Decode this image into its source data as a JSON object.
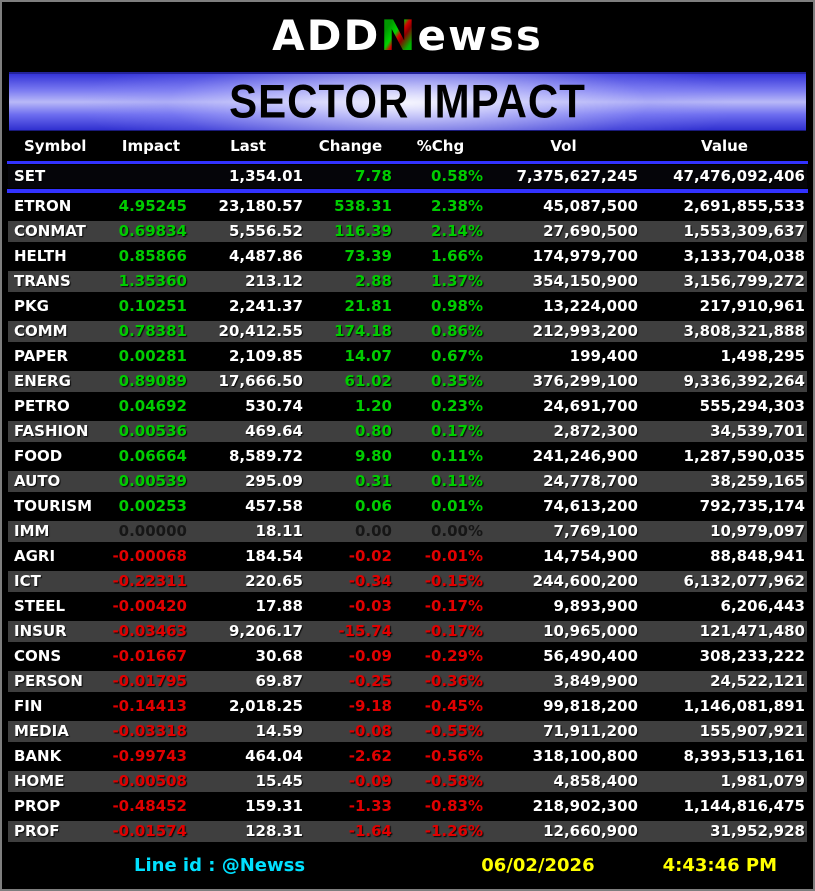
{
  "logo": {
    "part1": "ADD",
    "part2": "N",
    "part3": "ewss"
  },
  "title": "SECTOR IMPACT",
  "columns": [
    "Symbol",
    "Impact",
    "Last",
    "Change",
    "%Chg",
    "Vol",
    "Value"
  ],
  "set_row": {
    "symbol": "SET",
    "impact": "",
    "last": "1,354.01",
    "change": "7.78",
    "pchg": "0.58%",
    "vol": "7,375,627,245",
    "value": "47,476,092,406",
    "dir": "up"
  },
  "rows": [
    {
      "symbol": "ETRON",
      "impact": "4.95245",
      "last": "23,180.57",
      "change": "538.31",
      "pchg": "2.38%",
      "vol": "45,087,500",
      "value": "2,691,855,533",
      "dir": "up"
    },
    {
      "symbol": "CONMAT",
      "impact": "0.69834",
      "last": "5,556.52",
      "change": "116.39",
      "pchg": "2.14%",
      "vol": "27,690,500",
      "value": "1,553,309,637",
      "dir": "up"
    },
    {
      "symbol": "HELTH",
      "impact": "0.85866",
      "last": "4,487.86",
      "change": "73.39",
      "pchg": "1.66%",
      "vol": "174,979,700",
      "value": "3,133,704,038",
      "dir": "up"
    },
    {
      "symbol": "TRANS",
      "impact": "1.35360",
      "last": "213.12",
      "change": "2.88",
      "pchg": "1.37%",
      "vol": "354,150,900",
      "value": "3,156,799,272",
      "dir": "up"
    },
    {
      "symbol": "PKG",
      "impact": "0.10251",
      "last": "2,241.37",
      "change": "21.81",
      "pchg": "0.98%",
      "vol": "13,224,000",
      "value": "217,910,961",
      "dir": "up"
    },
    {
      "symbol": "COMM",
      "impact": "0.78381",
      "last": "20,412.55",
      "change": "174.18",
      "pchg": "0.86%",
      "vol": "212,993,200",
      "value": "3,808,321,888",
      "dir": "up"
    },
    {
      "symbol": "PAPER",
      "impact": "0.00281",
      "last": "2,109.85",
      "change": "14.07",
      "pchg": "0.67%",
      "vol": "199,400",
      "value": "1,498,295",
      "dir": "up"
    },
    {
      "symbol": "ENERG",
      "impact": "0.89089",
      "last": "17,666.50",
      "change": "61.02",
      "pchg": "0.35%",
      "vol": "376,299,100",
      "value": "9,336,392,264",
      "dir": "up"
    },
    {
      "symbol": "PETRO",
      "impact": "0.04692",
      "last": "530.74",
      "change": "1.20",
      "pchg": "0.23%",
      "vol": "24,691,700",
      "value": "555,294,303",
      "dir": "up"
    },
    {
      "symbol": "FASHION",
      "impact": "0.00536",
      "last": "469.64",
      "change": "0.80",
      "pchg": "0.17%",
      "vol": "2,872,300",
      "value": "34,539,701",
      "dir": "up"
    },
    {
      "symbol": "FOOD",
      "impact": "0.06664",
      "last": "8,589.72",
      "change": "9.80",
      "pchg": "0.11%",
      "vol": "241,246,900",
      "value": "1,287,590,035",
      "dir": "up"
    },
    {
      "symbol": "AUTO",
      "impact": "0.00539",
      "last": "295.09",
      "change": "0.31",
      "pchg": "0.11%",
      "vol": "24,778,700",
      "value": "38,259,165",
      "dir": "up"
    },
    {
      "symbol": "TOURISM",
      "impact": "0.00253",
      "last": "457.58",
      "change": "0.06",
      "pchg": "0.01%",
      "vol": "74,613,200",
      "value": "792,735,174",
      "dir": "up"
    },
    {
      "symbol": "IMM",
      "impact": "0.00000",
      "last": "18.11",
      "change": "0.00",
      "pchg": "0.00%",
      "vol": "7,769,100",
      "value": "10,979,097",
      "dir": "zero"
    },
    {
      "symbol": "AGRI",
      "impact": "-0.00068",
      "last": "184.54",
      "change": "-0.02",
      "pchg": "-0.01%",
      "vol": "14,754,900",
      "value": "88,848,941",
      "dir": "down"
    },
    {
      "symbol": "ICT",
      "impact": "-0.22311",
      "last": "220.65",
      "change": "-0.34",
      "pchg": "-0.15%",
      "vol": "244,600,200",
      "value": "6,132,077,962",
      "dir": "down"
    },
    {
      "symbol": "STEEL",
      "impact": "-0.00420",
      "last": "17.88",
      "change": "-0.03",
      "pchg": "-0.17%",
      "vol": "9,893,900",
      "value": "6,206,443",
      "dir": "down"
    },
    {
      "symbol": "INSUR",
      "impact": "-0.03463",
      "last": "9,206.17",
      "change": "-15.74",
      "pchg": "-0.17%",
      "vol": "10,965,000",
      "value": "121,471,480",
      "dir": "down"
    },
    {
      "symbol": "CONS",
      "impact": "-0.01667",
      "last": "30.68",
      "change": "-0.09",
      "pchg": "-0.29%",
      "vol": "56,490,400",
      "value": "308,233,222",
      "dir": "down"
    },
    {
      "symbol": "PERSON",
      "impact": "-0.01795",
      "last": "69.87",
      "change": "-0.25",
      "pchg": "-0.36%",
      "vol": "3,849,900",
      "value": "24,522,121",
      "dir": "down"
    },
    {
      "symbol": "FIN",
      "impact": "-0.14413",
      "last": "2,018.25",
      "change": "-9.18",
      "pchg": "-0.45%",
      "vol": "99,818,200",
      "value": "1,146,081,891",
      "dir": "down"
    },
    {
      "symbol": "MEDIA",
      "impact": "-0.03318",
      "last": "14.59",
      "change": "-0.08",
      "pchg": "-0.55%",
      "vol": "71,911,200",
      "value": "155,907,921",
      "dir": "down"
    },
    {
      "symbol": "BANK",
      "impact": "-0.99743",
      "last": "464.04",
      "change": "-2.62",
      "pchg": "-0.56%",
      "vol": "318,100,800",
      "value": "8,393,513,161",
      "dir": "down"
    },
    {
      "symbol": "HOME",
      "impact": "-0.00508",
      "last": "15.45",
      "change": "-0.09",
      "pchg": "-0.58%",
      "vol": "4,858,400",
      "value": "1,981,079",
      "dir": "down"
    },
    {
      "symbol": "PROP",
      "impact": "-0.48452",
      "last": "159.31",
      "change": "-1.33",
      "pchg": "-0.83%",
      "vol": "218,902,300",
      "value": "1,144,816,475",
      "dir": "down"
    },
    {
      "symbol": "PROF",
      "impact": "-0.01574",
      "last": "128.31",
      "change": "-1.64",
      "pchg": "-1.26%",
      "vol": "12,660,900",
      "value": "31,952,928",
      "dir": "down"
    }
  ],
  "footer": {
    "line_id": "Line id  : @Newss",
    "date": "06/02/2026",
    "time": "4:43:46 PM"
  },
  "colors": {
    "up": "#00cc00",
    "down": "#e00000",
    "zero": "#161616",
    "header_text": "#ffff00",
    "accent_line": "#3232ff",
    "row_alt_bg": "#3f3f3f",
    "cyan": "#00e0ff"
  }
}
